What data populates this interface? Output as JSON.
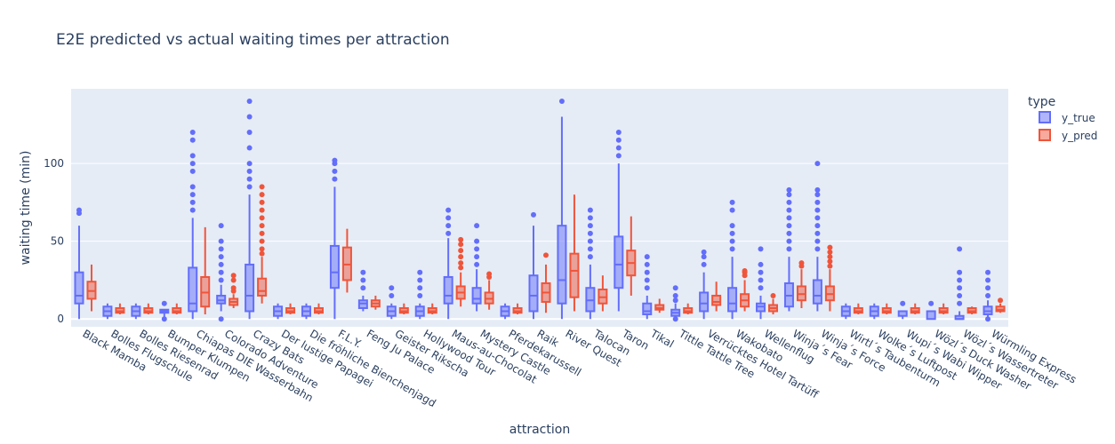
{
  "chart_data": {
    "type": "box",
    "title": "E2E predicted vs actual waiting times per attraction",
    "xlabel": "attraction",
    "ylabel": "waiting time (min)",
    "ylim": [
      -5,
      148
    ],
    "yticks": [
      0,
      50,
      100
    ],
    "grid": true,
    "legend": {
      "title": "type",
      "placement": "top-right",
      "entries": [
        "y_true",
        "y_pred"
      ]
    },
    "colors": {
      "y_true": "#636efa",
      "y_pred": "#ef553b",
      "background": "#e5ecf6",
      "grid": "#ffffff",
      "text": "#2a3f5f"
    },
    "categories": [
      "Black Mamba",
      "Bolles Flugschule",
      "Bolles Riesenrad",
      "Bumper Klumpen",
      "Chiapas DIE Wasserbahn",
      "Colorado Adventure",
      "Crazy Bats",
      "Der lustige Papagei",
      "Die fröhliche Bienchenjagd",
      "F.L.Y.",
      "Feng Ju Palace",
      "Geister Rikscha",
      "Hollywood Tour",
      "Maus-au-Chocolat",
      "Mystery Castle",
      "Pferdekarussell",
      "Raik",
      "River Quest",
      "Talocan",
      "Taron",
      "Tikal",
      "Tittle Tattle Tree",
      "Verrücktes Hotel Tartüff",
      "Wakobato",
      "Wellenflug",
      "Winja´s Fear",
      "Winja´s Force",
      "Wirtl´s Taubenturm",
      "Wolke´s Luftpost",
      "Wupi´s Wabi Wipper",
      "Wözl´s Duck Washer",
      "Wözl´s Wassertreter",
      "Würmling Express"
    ],
    "series": [
      {
        "name": "y_true",
        "boxes": [
          {
            "min": 0,
            "q1": 10,
            "median": 15,
            "q3": 30,
            "max": 60,
            "outliers": [
              68,
              70
            ]
          },
          {
            "min": 0,
            "q1": 2,
            "median": 5,
            "q3": 8,
            "max": 10,
            "outliers": []
          },
          {
            "min": 0,
            "q1": 2,
            "median": 5,
            "q3": 8,
            "max": 10,
            "outliers": []
          },
          {
            "min": 0,
            "q1": 4,
            "median": 5,
            "q3": 6,
            "max": 6,
            "outliers": [
              0,
              10
            ]
          },
          {
            "min": 0,
            "q1": 5,
            "median": 10,
            "q3": 33,
            "max": 65,
            "outliers": [
              70,
              75,
              80,
              85,
              95,
              100,
              105,
              115,
              120
            ]
          },
          {
            "min": 5,
            "q1": 10,
            "median": 12,
            "q3": 15,
            "max": 22,
            "outliers": [
              0,
              25,
              30,
              35,
              40,
              45,
              50,
              60
            ]
          },
          {
            "min": 0,
            "q1": 5,
            "median": 15,
            "q3": 35,
            "max": 80,
            "outliers": [
              85,
              90,
              95,
              100,
              110,
              120,
              130,
              140
            ]
          },
          {
            "min": 0,
            "q1": 2,
            "median": 5,
            "q3": 8,
            "max": 10,
            "outliers": []
          },
          {
            "min": 0,
            "q1": 2,
            "median": 5,
            "q3": 8,
            "max": 10,
            "outliers": []
          },
          {
            "min": 0,
            "q1": 20,
            "median": 30,
            "q3": 47,
            "max": 85,
            "outliers": [
              90,
              95,
              100,
              102
            ]
          },
          {
            "min": 5,
            "q1": 7,
            "median": 10,
            "q3": 12,
            "max": 15,
            "outliers": [
              20,
              25,
              30
            ]
          },
          {
            "min": 0,
            "q1": 2,
            "median": 5,
            "q3": 8,
            "max": 10,
            "outliers": [
              15,
              20
            ]
          },
          {
            "min": 0,
            "q1": 2,
            "median": 5,
            "q3": 8,
            "max": 10,
            "outliers": [
              15,
              20,
              25,
              30
            ]
          },
          {
            "min": 0,
            "q1": 10,
            "median": 15,
            "q3": 27,
            "max": 52,
            "outliers": [
              55,
              60,
              65,
              70
            ]
          },
          {
            "min": 5,
            "q1": 10,
            "median": 13,
            "q3": 20,
            "max": 32,
            "outliers": [
              35,
              40,
              45,
              50,
              60
            ]
          },
          {
            "min": 0,
            "q1": 2,
            "median": 5,
            "q3": 8,
            "max": 10,
            "outliers": []
          },
          {
            "min": 0,
            "q1": 5,
            "median": 15,
            "q3": 28,
            "max": 60,
            "outliers": [
              67
            ]
          },
          {
            "min": 0,
            "q1": 10,
            "median": 25,
            "q3": 60,
            "max": 130,
            "outliers": [
              140
            ]
          },
          {
            "min": 0,
            "q1": 5,
            "median": 12,
            "q3": 20,
            "max": 35,
            "outliers": [
              40,
              45,
              50,
              55,
              60,
              65,
              70
            ]
          },
          {
            "min": 5,
            "q1": 20,
            "median": 35,
            "q3": 53,
            "max": 100,
            "outliers": [
              105,
              110,
              115,
              120
            ]
          },
          {
            "min": 0,
            "q1": 3,
            "median": 5,
            "q3": 10,
            "max": 15,
            "outliers": [
              20,
              25,
              30,
              35,
              40
            ]
          },
          {
            "min": 0,
            "q1": 2,
            "median": 4,
            "q3": 6,
            "max": 10,
            "outliers": [
              0,
              12,
              15,
              20
            ]
          },
          {
            "min": 0,
            "q1": 5,
            "median": 10,
            "q3": 17,
            "max": 30,
            "outliers": [
              35,
              40,
              43
            ]
          },
          {
            "min": 0,
            "q1": 5,
            "median": 10,
            "q3": 20,
            "max": 40,
            "outliers": [
              45,
              50,
              55,
              60,
              70,
              75
            ]
          },
          {
            "min": 0,
            "q1": 5,
            "median": 8,
            "q3": 10,
            "max": 15,
            "outliers": [
              20,
              25,
              30,
              35,
              45
            ]
          },
          {
            "min": 5,
            "q1": 8,
            "median": 15,
            "q3": 23,
            "max": 40,
            "outliers": [
              45,
              50,
              55,
              60,
              65,
              70,
              75,
              80,
              83
            ]
          },
          {
            "min": 5,
            "q1": 10,
            "median": 15,
            "q3": 25,
            "max": 40,
            "outliers": [
              45,
              50,
              55,
              60,
              65,
              70,
              75,
              80,
              83,
              100
            ]
          },
          {
            "min": 0,
            "q1": 2,
            "median": 5,
            "q3": 8,
            "max": 10,
            "outliers": []
          },
          {
            "min": 0,
            "q1": 2,
            "median": 5,
            "q3": 8,
            "max": 10,
            "outliers": []
          },
          {
            "min": 0,
            "q1": 2,
            "median": 5,
            "q3": 5,
            "max": 5,
            "outliers": [
              10
            ]
          },
          {
            "min": 0,
            "q1": 0,
            "median": 5,
            "q3": 5,
            "max": 5,
            "outliers": [
              10
            ]
          },
          {
            "min": 0,
            "q1": 0,
            "median": 0,
            "q3": 2,
            "max": 5,
            "outliers": [
              10,
              15,
              20,
              25,
              30,
              45
            ]
          },
          {
            "min": 0,
            "q1": 3,
            "median": 5,
            "q3": 8,
            "max": 12,
            "outliers": [
              0,
              15,
              20,
              25,
              30
            ]
          }
        ]
      },
      {
        "name": "y_pred",
        "boxes": [
          {
            "min": 5,
            "q1": 13,
            "median": 18,
            "q3": 24,
            "max": 35,
            "outliers": []
          },
          {
            "min": 3,
            "q1": 4,
            "median": 5,
            "q3": 7,
            "max": 10,
            "outliers": []
          },
          {
            "min": 3,
            "q1": 4,
            "median": 5,
            "q3": 7,
            "max": 10,
            "outliers": []
          },
          {
            "min": 3,
            "q1": 4,
            "median": 5,
            "q3": 7,
            "max": 10,
            "outliers": []
          },
          {
            "min": 3,
            "q1": 8,
            "median": 17,
            "q3": 27,
            "max": 59,
            "outliers": []
          },
          {
            "min": 7,
            "q1": 9,
            "median": 11,
            "q3": 13,
            "max": 16,
            "outliers": [
              18,
              20,
              25,
              28
            ]
          },
          {
            "min": 10,
            "q1": 15,
            "median": 18,
            "q3": 26,
            "max": 40,
            "outliers": [
              42,
              45,
              50,
              55,
              60,
              65,
              70,
              75,
              80,
              85
            ]
          },
          {
            "min": 3,
            "q1": 4,
            "median": 5,
            "q3": 7,
            "max": 10,
            "outliers": []
          },
          {
            "min": 3,
            "q1": 4,
            "median": 5,
            "q3": 7,
            "max": 10,
            "outliers": []
          },
          {
            "min": 17,
            "q1": 25,
            "median": 35,
            "q3": 46,
            "max": 58,
            "outliers": []
          },
          {
            "min": 6,
            "q1": 8,
            "median": 10,
            "q3": 12,
            "max": 15,
            "outliers": []
          },
          {
            "min": 3,
            "q1": 4,
            "median": 5,
            "q3": 7,
            "max": 10,
            "outliers": []
          },
          {
            "min": 3,
            "q1": 4,
            "median": 5,
            "q3": 7,
            "max": 10,
            "outliers": []
          },
          {
            "min": 8,
            "q1": 13,
            "median": 17,
            "q3": 21,
            "max": 30,
            "outliers": [
              33,
              36,
              40,
              44,
              48,
              51
            ]
          },
          {
            "min": 6,
            "q1": 10,
            "median": 13,
            "q3": 17,
            "max": 25,
            "outliers": [
              27,
              29
            ]
          },
          {
            "min": 3,
            "q1": 4,
            "median": 5,
            "q3": 7,
            "max": 10,
            "outliers": []
          },
          {
            "min": 4,
            "q1": 11,
            "median": 17,
            "q3": 23,
            "max": 35,
            "outliers": [
              41
            ]
          },
          {
            "min": 5,
            "q1": 14,
            "median": 31,
            "q3": 42,
            "max": 80,
            "outliers": []
          },
          {
            "min": 5,
            "q1": 10,
            "median": 14,
            "q3": 19,
            "max": 28,
            "outliers": []
          },
          {
            "min": 15,
            "q1": 28,
            "median": 36,
            "q3": 44,
            "max": 66,
            "outliers": []
          },
          {
            "min": 4,
            "q1": 6,
            "median": 7,
            "q3": 9,
            "max": 13,
            "outliers": []
          },
          {
            "min": 3,
            "q1": 4,
            "median": 5,
            "q3": 7,
            "max": 10,
            "outliers": []
          },
          {
            "min": 5,
            "q1": 9,
            "median": 11,
            "q3": 15,
            "max": 24,
            "outliers": []
          },
          {
            "min": 5,
            "q1": 8,
            "median": 12,
            "q3": 16,
            "max": 25,
            "outliers": [
              28,
              30,
              31
            ]
          },
          {
            "min": 3,
            "q1": 5,
            "median": 7,
            "q3": 9,
            "max": 13,
            "outliers": [
              15
            ]
          },
          {
            "min": 7,
            "q1": 12,
            "median": 16,
            "q3": 21,
            "max": 32,
            "outliers": [
              34,
              36
            ]
          },
          {
            "min": 5,
            "q1": 12,
            "median": 16,
            "q3": 21,
            "max": 32,
            "outliers": [
              34,
              37,
              40,
              43,
              46
            ]
          },
          {
            "min": 3,
            "q1": 4,
            "median": 5,
            "q3": 7,
            "max": 10,
            "outliers": []
          },
          {
            "min": 3,
            "q1": 4,
            "median": 5,
            "q3": 7,
            "max": 10,
            "outliers": []
          },
          {
            "min": 3,
            "q1": 4,
            "median": 5,
            "q3": 7,
            "max": 10,
            "outliers": []
          },
          {
            "min": 3,
            "q1": 4,
            "median": 5,
            "q3": 7,
            "max": 10,
            "outliers": []
          },
          {
            "min": 3,
            "q1": 4,
            "median": 5,
            "q3": 7,
            "max": 8,
            "outliers": []
          },
          {
            "min": 4,
            "q1": 5,
            "median": 6,
            "q3": 8,
            "max": 10,
            "outliers": [
              12
            ]
          }
        ]
      }
    ]
  }
}
